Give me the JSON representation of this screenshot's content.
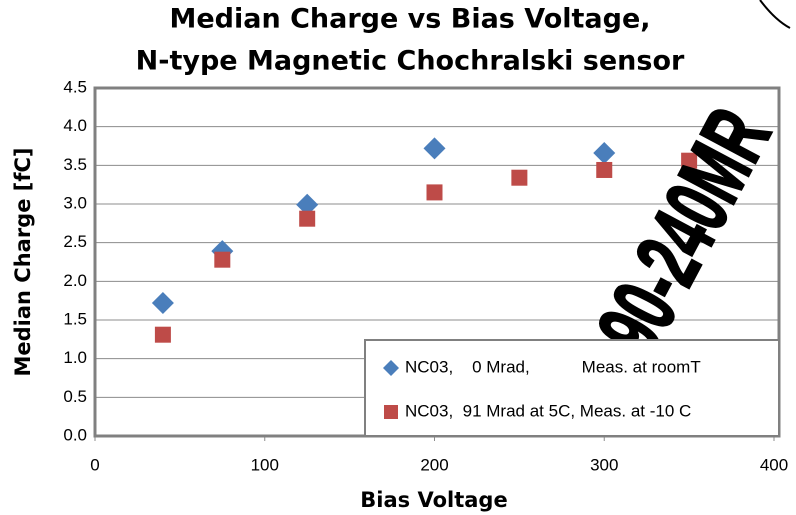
{
  "chart_data": {
    "type": "scatter",
    "title": "Median Charge vs Bias Voltage,",
    "subtitle": "N-type Magnetic Chochralski sensor",
    "x_label": "Bias Voltage",
    "y_label": "Median Charge [fC]",
    "xlim": [
      0,
      400
    ],
    "xticks": [
      0,
      100,
      200,
      300,
      400
    ],
    "ylim": [
      0,
      4.5
    ],
    "yticks": [
      {
        "value": 0,
        "label": "0.0"
      },
      0.5,
      {
        "value": 1,
        "label": "1.0"
      },
      1.5,
      {
        "value": 2,
        "label": "2.0"
      },
      2.5,
      {
        "value": 3,
        "label": "3.0"
      },
      3.5,
      {
        "value": 4,
        "label": "4.0"
      },
      4.5
    ],
    "grid": true,
    "legend": "bottom-right",
    "series": [
      {
        "name": "NC03,    0 Mrad,           Meas. at roomT",
        "color": "#4a7ebb",
        "marker": "diamond",
        "x": [
          40,
          75,
          125,
          200,
          300
        ],
        "values": [
          1.72,
          2.39,
          2.99,
          3.72,
          3.66
        ]
      },
      {
        "name": "NC03,  91 Mrad at 5C, Meas. at -10 C",
        "color": "#be4b48",
        "marker": "square",
        "x": [
          40,
          75,
          125,
          200,
          250,
          300,
          350
        ],
        "values": [
          1.31,
          2.28,
          2.81,
          3.15,
          3.34,
          3.44,
          3.56
        ]
      }
    ],
    "annotation": "90-240MR"
  }
}
